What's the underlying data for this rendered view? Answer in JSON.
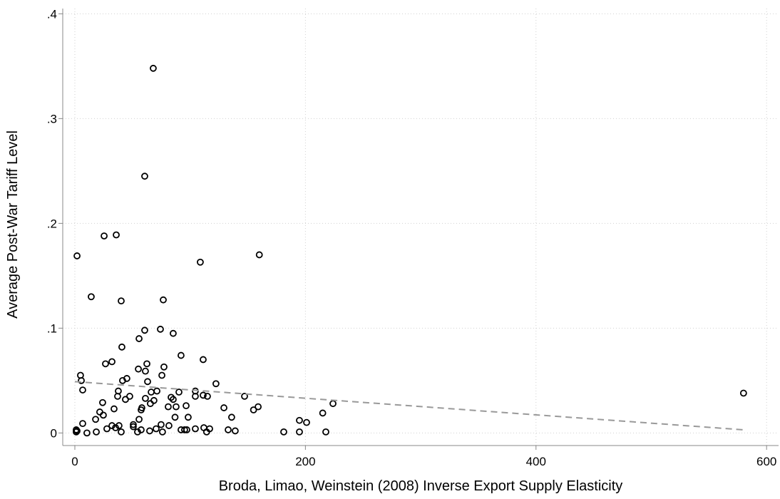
{
  "chart_data": {
    "type": "scatter",
    "x_label": "Broda, Limao, Weinstein (2008) Inverse Export Supply Elasticity",
    "y_label": "Average Post-War Tariff Level",
    "xlim": [
      -10.5,
      610.4
    ],
    "ylim": [
      -0.012,
      0.405
    ],
    "xticks": [
      0,
      200,
      400,
      600
    ],
    "yticks": [
      0,
      {
        "value": 0.1,
        "label": ".1"
      },
      {
        "value": 0.2,
        "label": ".2"
      },
      {
        "value": 0.3,
        "label": ".3"
      },
      {
        "value": 0.4,
        "label": ".4"
      }
    ],
    "grid": true,
    "series": [
      {
        "color": "#000000",
        "x": [
          1.9,
          68,
          60.6,
          25.4,
          35.9,
          160,
          108.8,
          14.2,
          40.2,
          76.7,
          60.6,
          74.2,
          85.3,
          55.7,
          40.8,
          92.1,
          111.3,
          26.6,
          32.2,
          62.5,
          77.3,
          55.1,
          61.2,
          4.9,
          5.6,
          6.8,
          45.1,
          41.4,
          75.5,
          63.1,
          122.4,
          37.7,
          71.2,
          66.2,
          47.6,
          43.9,
          37.1,
          104.5,
          104.5,
          90.3,
          111.3,
          115,
          147.2,
          83.5,
          85.3,
          61.2,
          68.6,
          65.5,
          223.9,
          580,
          159,
          155,
          129.3,
          24.1,
          34,
          57.5,
          58.1,
          81,
          96.5,
          87.8,
          21.6,
          24.7,
          18,
          55.7,
          86.9,
          98.3,
          136,
          215,
          194.8,
          201,
          6.8,
          32.2,
          35.3,
          38.3,
          50.7,
          50.7,
          27.8,
          74.8,
          81.6,
          70.5,
          95.2,
          97.1,
          92.1,
          104.5,
          111.9,
          116.9,
          133,
          139.1,
          114.3,
          57.5,
          64.9,
          76,
          40.2,
          18.6,
          10.5,
          1.2,
          1.2,
          1.9,
          54.4,
          181.2,
          194.8,
          217.7
        ],
        "values": [
          0.169,
          0.348,
          0.245,
          0.188,
          0.189,
          0.17,
          0.163,
          0.13,
          0.126,
          0.127,
          0.098,
          0.099,
          0.095,
          0.09,
          0.082,
          0.074,
          0.07,
          0.066,
          0.068,
          0.066,
          0.063,
          0.061,
          0.059,
          0.055,
          0.05,
          0.041,
          0.052,
          0.05,
          0.055,
          0.049,
          0.047,
          0.04,
          0.04,
          0.039,
          0.035,
          0.032,
          0.035,
          0.04,
          0.035,
          0.039,
          0.036,
          0.035,
          0.035,
          0.034,
          0.032,
          0.033,
          0.031,
          0.028,
          0.028,
          0.038,
          0.025,
          0.022,
          0.024,
          0.029,
          0.023,
          0.022,
          0.024,
          0.025,
          0.026,
          0.025,
          0.02,
          0.017,
          0.013,
          0.013,
          0.015,
          0.015,
          0.015,
          0.019,
          0.012,
          0.01,
          0.009,
          0.007,
          0.005,
          0.007,
          0.008,
          0.006,
          0.004,
          0.008,
          0.007,
          0.004,
          0.003,
          0.003,
          0.003,
          0.004,
          0.005,
          0.004,
          0.003,
          0.002,
          0.001,
          0.003,
          0.002,
          0.001,
          0.001,
          0.001,
          0,
          0.003,
          0.001,
          0.002,
          0.001,
          0.001,
          0.001,
          0.001
        ]
      }
    ],
    "trend": {
      "color": "#999999",
      "x": [
        0,
        580
      ],
      "values": [
        0.049,
        0.003
      ]
    }
  }
}
